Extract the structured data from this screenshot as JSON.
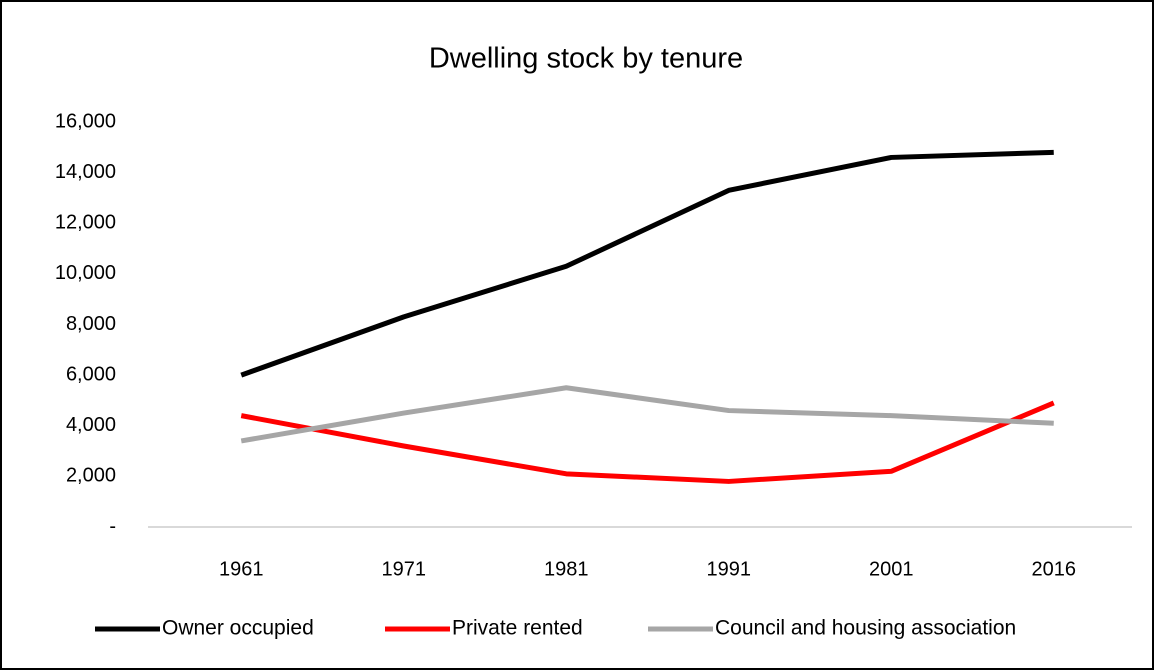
{
  "chart_data": {
    "type": "line",
    "title": "Dwelling stock by tenure",
    "categories": [
      "1961",
      "1971",
      "1981",
      "1991",
      "2001",
      "2016"
    ],
    "series": [
      {
        "name": "Owner occupied",
        "color": "#000000",
        "values": [
          6000,
          8300,
          10300,
          13300,
          14600,
          14800
        ]
      },
      {
        "name": "Private rented",
        "color": "#ff0000",
        "values": [
          4400,
          3200,
          2100,
          1800,
          2200,
          4900
        ]
      },
      {
        "name": "Council and housing association",
        "color": "#a6a6a6",
        "values": [
          3400,
          4500,
          5500,
          4600,
          4400,
          4100
        ]
      }
    ],
    "ylim": [
      0,
      16000
    ],
    "yticks": [
      {
        "value": 0,
        "label": "-"
      },
      {
        "value": 2000,
        "label": "2,000"
      },
      {
        "value": 4000,
        "label": "4,000"
      },
      {
        "value": 6000,
        "label": "6,000"
      },
      {
        "value": 8000,
        "label": "8,000"
      },
      {
        "value": 10000,
        "label": "10,000"
      },
      {
        "value": 12000,
        "label": "12,000"
      },
      {
        "value": 14000,
        "label": "14,000"
      },
      {
        "value": 16000,
        "label": "16,000"
      }
    ],
    "grid": false,
    "legend": "bottom"
  }
}
